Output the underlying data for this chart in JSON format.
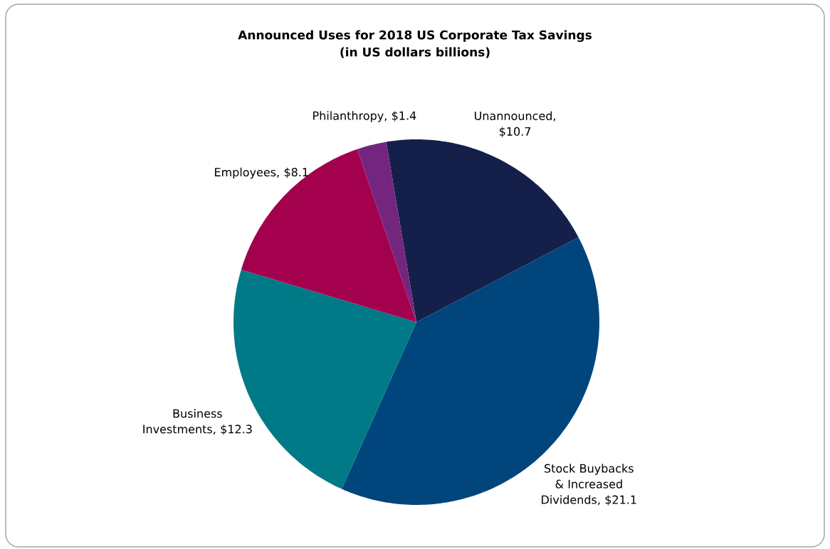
{
  "chart_data": {
    "type": "pie",
    "title": "Announced Uses for 2018 US Corporate Tax Savings",
    "subtitle": "(in US dollars billions)",
    "categories": [
      "Unannounced",
      "Stock Buybacks & Increased Dividends",
      "Business Investments",
      "Employees",
      "Philanthropy"
    ],
    "values": [
      10.7,
      21.1,
      12.3,
      8.1,
      1.4
    ],
    "value_labels": [
      ", $10.7",
      ", $21.1",
      ", $12.3",
      ", $8.1",
      ", $1.4"
    ],
    "colors": [
      "#14204a",
      "#00457c",
      "#007a87",
      "#a3004e",
      "#74267f"
    ]
  }
}
